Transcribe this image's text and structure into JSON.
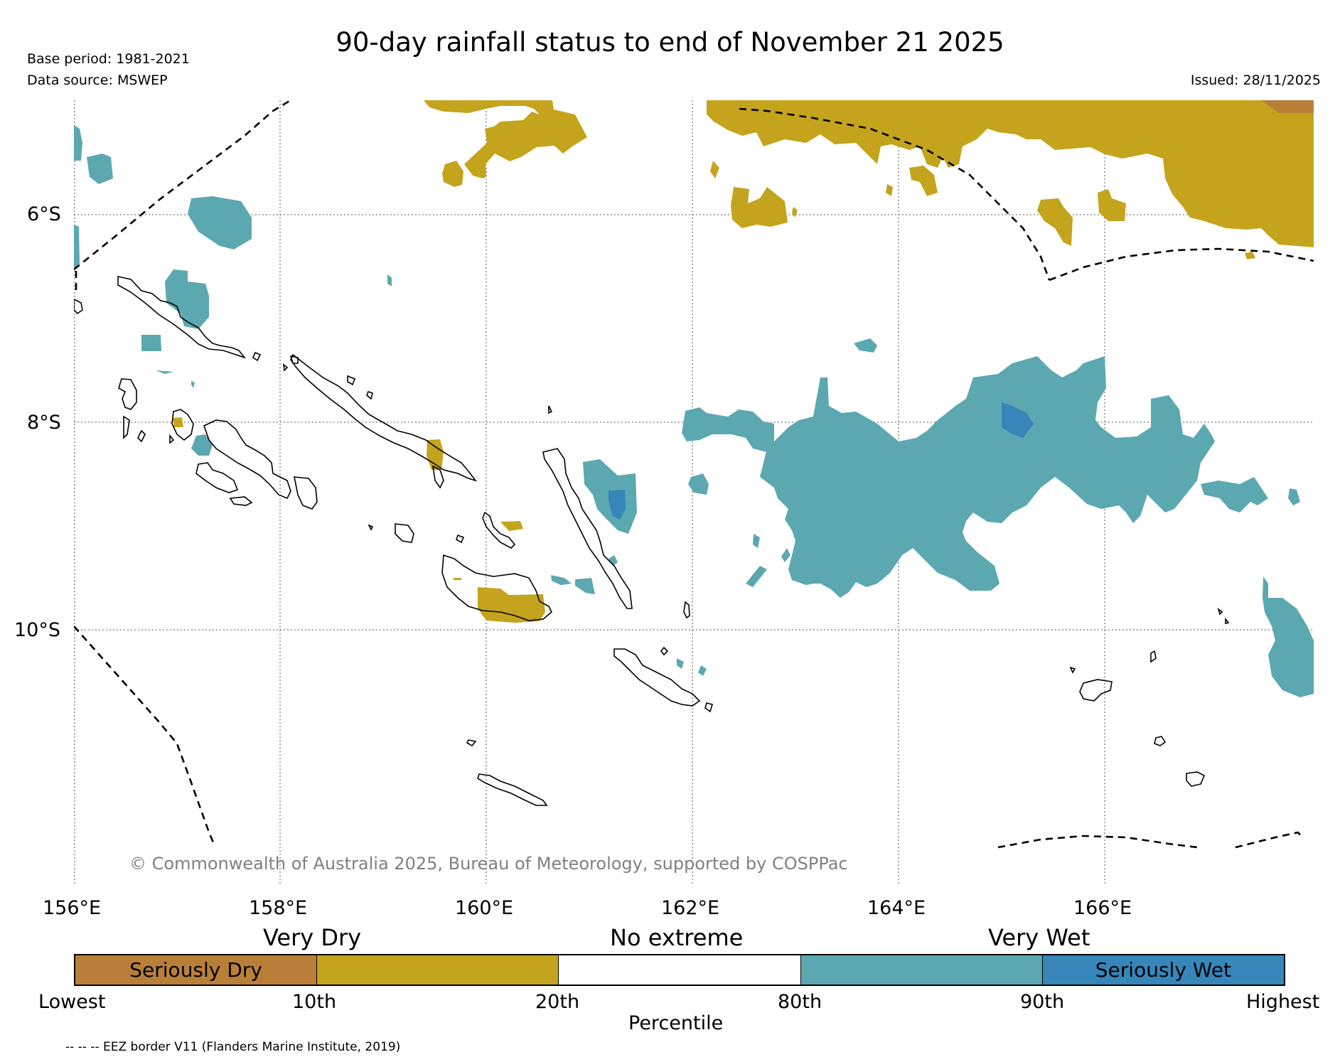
{
  "title": "90-day rainfall status to end of November 21 2025",
  "base_period": "Base period: 1981-2021",
  "data_source": "Data source: MSWEP",
  "issued": "Issued: 28/11/2025",
  "latitude_labels": [
    "6°S",
    "8°S",
    "10°S"
  ],
  "longitude_labels": [
    "156°E",
    "158°E",
    "160°E",
    "162°E",
    "164°E",
    "166°E"
  ],
  "copyright": "© Commonwealth of Australia 2025, Bureau of Meteorology, supported by COSPPac",
  "legend": {
    "category_labels": [
      "Very Dry",
      "No extreme",
      "Very Wet"
    ],
    "segments": [
      {
        "label": "Seriously Dry",
        "color": "#b97f39"
      },
      {
        "label": "",
        "color": "#c4a41d"
      },
      {
        "label": "",
        "color": "#ffffff"
      },
      {
        "label": "",
        "color": "#5ca8b0"
      },
      {
        "label": "Seriously Wet",
        "color": "#3686ba"
      }
    ],
    "percentile_labels": [
      "Lowest",
      "10th",
      "20th",
      "80th",
      "90th",
      "Highest"
    ],
    "axis_label": "Percentile"
  },
  "footnote": "-- -- -- EEZ border V11 (Flanders Marine Institute, 2019)",
  "colors": {
    "seriously_dry": "#b97f39",
    "very_dry": "#c4a41d",
    "very_wet": "#5ca8b0",
    "seriously_wet": "#3686ba",
    "copyright_text": "#808080"
  }
}
